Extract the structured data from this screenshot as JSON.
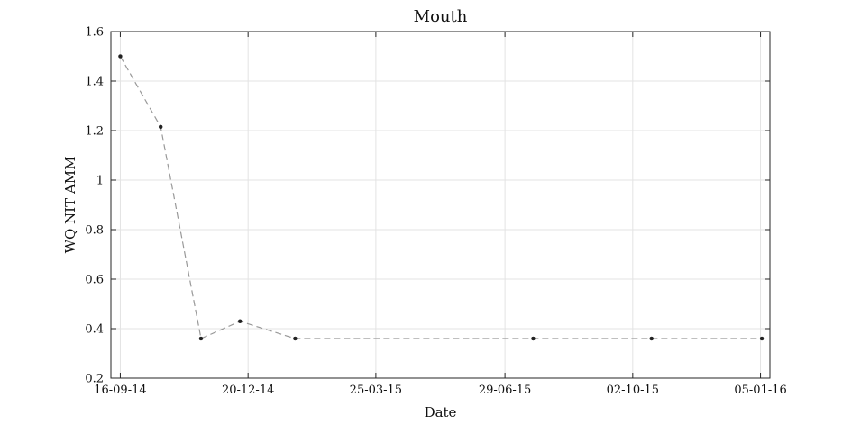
{
  "chart_data": {
    "type": "line",
    "title": "Mouth",
    "xlabel": "Date",
    "ylabel": "WQ NIT AMM",
    "x_type": "date",
    "xlim": [
      "2014-09-09",
      "2016-01-12"
    ],
    "ylim": [
      0.2,
      1.6
    ],
    "x_ticks": [
      {
        "date": "2014-09-16",
        "label": "16-09-14"
      },
      {
        "date": "2014-12-20",
        "label": "20-12-14"
      },
      {
        "date": "2015-03-25",
        "label": "25-03-15"
      },
      {
        "date": "2015-06-29",
        "label": "29-06-15"
      },
      {
        "date": "2015-10-02",
        "label": "02-10-15"
      },
      {
        "date": "2016-01-05",
        "label": "05-01-16"
      }
    ],
    "y_ticks": [
      0.2,
      0.4,
      0.6,
      0.8,
      1,
      1.2,
      1.4,
      1.6
    ],
    "y_tick_labels": [
      "0.2",
      "0.4",
      "0.6",
      "0.8",
      "1",
      "1.2",
      "1.4",
      "1.6"
    ],
    "grid": true,
    "series": [
      {
        "color": "#999999",
        "marker_color": "#222222",
        "line_style": "dashed",
        "points": [
          {
            "x": "2014-09-16",
            "y": 1.5
          },
          {
            "x": "2014-10-16",
            "y": 1.215
          },
          {
            "x": "2014-11-15",
            "y": 0.36
          },
          {
            "x": "2014-12-14",
            "y": 0.43
          },
          {
            "x": "2015-01-24",
            "y": 0.36
          },
          {
            "x": "2015-07-20",
            "y": 0.36
          },
          {
            "x": "2015-10-16",
            "y": 0.36
          },
          {
            "x": "2016-01-06",
            "y": 0.36
          }
        ]
      }
    ]
  }
}
